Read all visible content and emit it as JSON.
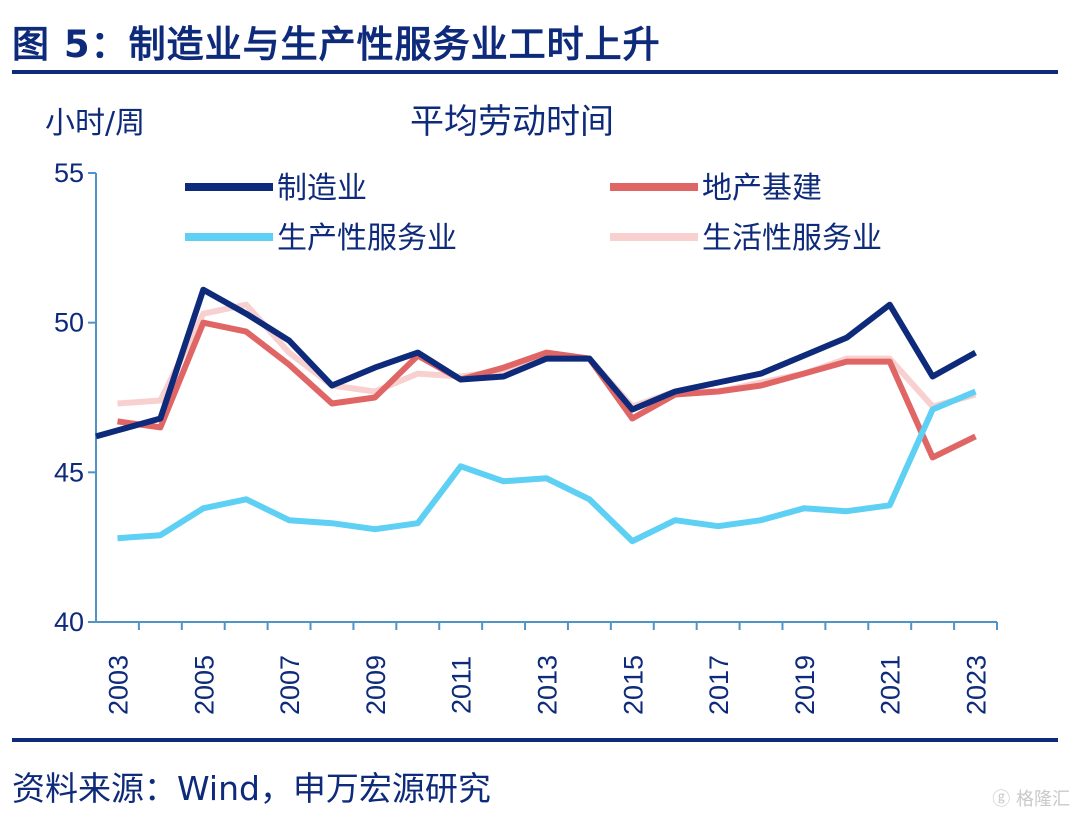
{
  "figure": {
    "title": "图 5：制造业与生产性服务业工时上升",
    "source": "资料来源：Wind，申万宏源研究",
    "watermark": "格隆汇"
  },
  "chart_data": {
    "type": "line",
    "title": "平均劳动时间",
    "ylabel": "小时/周",
    "xlabel": "",
    "ylim": [
      40,
      55
    ],
    "yticks": [
      40,
      45,
      50,
      55
    ],
    "xlim": [
      2002.5,
      2023.5
    ],
    "xticks": [
      "2003",
      "2005",
      "2007",
      "2009",
      "2011",
      "2013",
      "2015",
      "2017",
      "2019",
      "2021",
      "2023"
    ],
    "legend_position": "top",
    "grid": false,
    "series": [
      {
        "name": "制造业",
        "color": "#0e2a7a",
        "points": [
          [
            2002.5,
            46.2
          ],
          [
            2003,
            46.4
          ],
          [
            2004,
            46.8
          ],
          [
            2005,
            51.1
          ],
          [
            2006,
            50.3
          ],
          [
            2007,
            49.4
          ],
          [
            2008,
            47.9
          ],
          [
            2009,
            48.5
          ],
          [
            2010,
            49.0
          ],
          [
            2011,
            48.1
          ],
          [
            2012,
            48.2
          ],
          [
            2013,
            48.8
          ],
          [
            2014,
            48.8
          ],
          [
            2015,
            47.1
          ],
          [
            2016,
            47.7
          ],
          [
            2017,
            48.0
          ],
          [
            2018,
            48.3
          ],
          [
            2019,
            48.9
          ],
          [
            2020,
            49.5
          ],
          [
            2021,
            50.6
          ],
          [
            2022,
            48.2
          ],
          [
            2023,
            49.0
          ]
        ]
      },
      {
        "name": "地产基建",
        "color": "#e06666",
        "points": [
          [
            2003,
            46.7
          ],
          [
            2004,
            46.5
          ],
          [
            2005,
            50.0
          ],
          [
            2006,
            49.7
          ],
          [
            2007,
            48.6
          ],
          [
            2008,
            47.3
          ],
          [
            2009,
            47.5
          ],
          [
            2010,
            48.9
          ],
          [
            2011,
            48.1
          ],
          [
            2012,
            48.5
          ],
          [
            2013,
            49.0
          ],
          [
            2014,
            48.8
          ],
          [
            2015,
            46.8
          ],
          [
            2016,
            47.6
          ],
          [
            2017,
            47.7
          ],
          [
            2018,
            47.9
          ],
          [
            2019,
            48.3
          ],
          [
            2020,
            48.7
          ],
          [
            2021,
            48.7
          ],
          [
            2022,
            45.5
          ],
          [
            2023,
            46.2
          ]
        ]
      },
      {
        "name": "生产性服务业",
        "color": "#5dd0f4",
        "points": [
          [
            2003,
            42.8
          ],
          [
            2004,
            42.9
          ],
          [
            2005,
            43.8
          ],
          [
            2006,
            44.1
          ],
          [
            2007,
            43.4
          ],
          [
            2008,
            43.3
          ],
          [
            2009,
            43.1
          ],
          [
            2010,
            43.3
          ],
          [
            2011,
            45.2
          ],
          [
            2012,
            44.7
          ],
          [
            2013,
            44.8
          ],
          [
            2014,
            44.1
          ],
          [
            2015,
            42.7
          ],
          [
            2016,
            43.4
          ],
          [
            2017,
            43.2
          ],
          [
            2018,
            43.4
          ],
          [
            2019,
            43.8
          ],
          [
            2020,
            43.7
          ],
          [
            2021,
            43.9
          ],
          [
            2022,
            47.1
          ],
          [
            2023,
            47.7
          ]
        ]
      },
      {
        "name": "生活性服务业",
        "color": "#f8d0cf",
        "points": [
          [
            2003,
            47.3
          ],
          [
            2004,
            47.4
          ],
          [
            2005,
            50.3
          ],
          [
            2006,
            50.6
          ],
          [
            2007,
            49.0
          ],
          [
            2008,
            47.9
          ],
          [
            2009,
            47.7
          ],
          [
            2010,
            48.3
          ],
          [
            2011,
            48.2
          ],
          [
            2012,
            48.4
          ],
          [
            2013,
            48.8
          ],
          [
            2014,
            48.8
          ],
          [
            2015,
            47.2
          ],
          [
            2016,
            47.7
          ],
          [
            2017,
            47.7
          ],
          [
            2018,
            48.0
          ],
          [
            2019,
            48.3
          ],
          [
            2020,
            48.8
          ],
          [
            2021,
            48.8
          ],
          [
            2022,
            47.2
          ],
          [
            2023,
            47.6
          ]
        ]
      }
    ]
  }
}
